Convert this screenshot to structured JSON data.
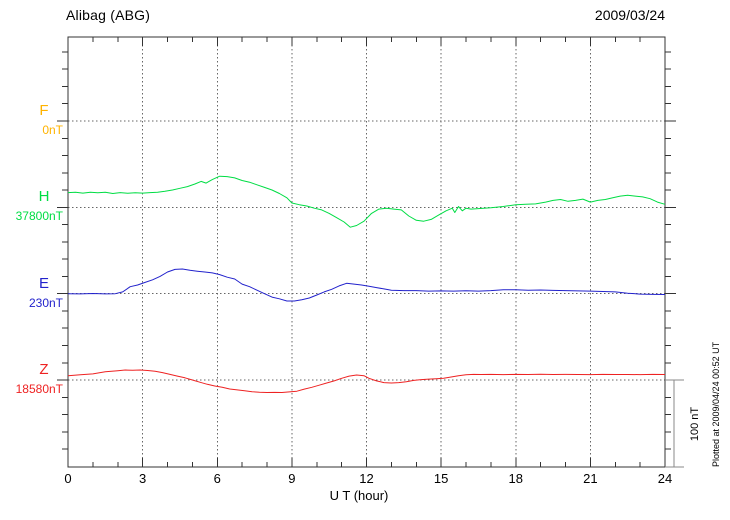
{
  "header": {
    "title": "Alibag (ABG)",
    "date": "2009/03/24"
  },
  "xaxis": {
    "label": "U T (hour)",
    "ticks": [
      "0",
      "3",
      "6",
      "9",
      "12",
      "15",
      "18",
      "21",
      "24"
    ],
    "min": 0,
    "max": 24
  },
  "scale_bar": {
    "label": "100 nT",
    "nT": 100
  },
  "footnote": "Plotted at 2009/04/24 00:52 UT",
  "colors": {
    "F": "#FFB300",
    "H": "#00DD44",
    "E": "#2222CC",
    "Z": "#EE2222",
    "grid": "#666666",
    "axis": "#333333",
    "scalebar": "#888888"
  },
  "traces": [
    {
      "label": "F",
      "baseline_label": "0nT",
      "color": "#FFB300"
    },
    {
      "label": "H",
      "baseline_label": "37800nT",
      "color": "#00DD44"
    },
    {
      "label": "E",
      "baseline_label": "230nT",
      "color": "#2222CC"
    },
    {
      "label": "Z",
      "baseline_label": "18580nT",
      "color": "#EE2222"
    }
  ],
  "chart_data": {
    "type": "line",
    "title": "Alibag (ABG) magnetogram 2009/03/24",
    "xlabel": "U T (hour)",
    "x_range": [
      0,
      24
    ],
    "grid": "dotted at 3-hour intervals and at each component baseline",
    "legend_position": "left margin (component letters with baseline values)",
    "scale_bar_nT": 100,
    "series": [
      {
        "name": "F",
        "baseline_nT": 0,
        "color": "#FFB300",
        "points": []
      },
      {
        "name": "H",
        "baseline_nT": 37800,
        "color": "#00DD44",
        "points": [
          [
            0,
            17
          ],
          [
            0.3,
            17.5
          ],
          [
            0.6,
            16.5
          ],
          [
            0.9,
            17.5
          ],
          [
            1.2,
            16.8
          ],
          [
            1.5,
            17.5
          ],
          [
            1.8,
            16
          ],
          [
            2.1,
            17
          ],
          [
            2.4,
            16.2
          ],
          [
            2.7,
            16.8
          ],
          [
            3.0,
            16.5
          ],
          [
            3.3,
            17
          ],
          [
            3.6,
            17.5
          ],
          [
            3.9,
            18.5
          ],
          [
            4.2,
            20
          ],
          [
            4.5,
            22
          ],
          [
            4.8,
            24
          ],
          [
            5.1,
            27
          ],
          [
            5.35,
            30
          ],
          [
            5.55,
            28
          ],
          [
            5.8,
            32
          ],
          [
            6.1,
            36
          ],
          [
            6.4,
            35.5
          ],
          [
            6.7,
            34
          ],
          [
            7.0,
            31
          ],
          [
            7.3,
            29
          ],
          [
            7.6,
            26
          ],
          [
            7.9,
            23
          ],
          [
            8.2,
            20
          ],
          [
            8.5,
            16
          ],
          [
            8.8,
            11
          ],
          [
            9.0,
            5
          ],
          [
            9.3,
            3
          ],
          [
            9.6,
            1.5
          ],
          [
            9.9,
            -1
          ],
          [
            10.2,
            -3
          ],
          [
            10.5,
            -7
          ],
          [
            10.8,
            -12
          ],
          [
            11.1,
            -17
          ],
          [
            11.35,
            -23
          ],
          [
            11.6,
            -21
          ],
          [
            11.9,
            -16
          ],
          [
            12.2,
            -7
          ],
          [
            12.5,
            -2
          ],
          [
            12.8,
            -1
          ],
          [
            13.1,
            -2
          ],
          [
            13.4,
            -3
          ],
          [
            13.7,
            -10
          ],
          [
            14.0,
            -15
          ],
          [
            14.3,
            -16
          ],
          [
            14.6,
            -14
          ],
          [
            14.9,
            -9
          ],
          [
            15.2,
            -4
          ],
          [
            15.45,
            -1
          ],
          [
            15.55,
            -6
          ],
          [
            15.7,
            1
          ],
          [
            15.85,
            -4
          ],
          [
            16.0,
            -1
          ],
          [
            16.2,
            -2
          ],
          [
            16.5,
            -1.5
          ],
          [
            17.0,
            -0.5
          ],
          [
            17.5,
            1
          ],
          [
            18.0,
            3
          ],
          [
            18.4,
            3.5
          ],
          [
            18.8,
            4
          ],
          [
            19.2,
            6
          ],
          [
            19.5,
            8
          ],
          [
            19.8,
            9
          ],
          [
            20.1,
            7
          ],
          [
            20.4,
            8
          ],
          [
            20.7,
            9.5
          ],
          [
            21.0,
            6
          ],
          [
            21.3,
            8
          ],
          [
            21.6,
            9
          ],
          [
            21.9,
            11
          ],
          [
            22.2,
            13
          ],
          [
            22.5,
            14
          ],
          [
            22.8,
            13
          ],
          [
            23.1,
            12
          ],
          [
            23.4,
            10
          ],
          [
            23.7,
            6
          ],
          [
            24,
            3.5
          ]
        ]
      },
      {
        "name": "E",
        "baseline_nT": 230,
        "color": "#2222CC",
        "points": [
          [
            0,
            0
          ],
          [
            0.5,
            -0.3
          ],
          [
            1.0,
            0.2
          ],
          [
            1.5,
            -0.3
          ],
          [
            1.9,
            0
          ],
          [
            2.2,
            2
          ],
          [
            2.5,
            8
          ],
          [
            2.8,
            10
          ],
          [
            3.1,
            13
          ],
          [
            3.4,
            16
          ],
          [
            3.7,
            20
          ],
          [
            4.0,
            25
          ],
          [
            4.3,
            28
          ],
          [
            4.6,
            28.5
          ],
          [
            4.9,
            27
          ],
          [
            5.2,
            26
          ],
          [
            5.5,
            25
          ],
          [
            5.8,
            24
          ],
          [
            6.1,
            22
          ],
          [
            6.4,
            19
          ],
          [
            6.7,
            17
          ],
          [
            7.0,
            11
          ],
          [
            7.3,
            8
          ],
          [
            7.6,
            4
          ],
          [
            7.9,
            0
          ],
          [
            8.2,
            -4
          ],
          [
            8.5,
            -6
          ],
          [
            8.8,
            -8.5
          ],
          [
            9.1,
            -8.5
          ],
          [
            9.4,
            -7
          ],
          [
            9.7,
            -5
          ],
          [
            10.0,
            -1.5
          ],
          [
            10.3,
            2
          ],
          [
            10.6,
            5
          ],
          [
            10.9,
            9
          ],
          [
            11.2,
            12
          ],
          [
            11.5,
            11
          ],
          [
            11.8,
            10
          ],
          [
            12.1,
            8.5
          ],
          [
            12.4,
            7
          ],
          [
            12.7,
            5.5
          ],
          [
            13.0,
            4
          ],
          [
            13.5,
            3.5
          ],
          [
            14,
            3.5
          ],
          [
            14.5,
            3
          ],
          [
            15,
            3.2
          ],
          [
            15.5,
            3
          ],
          [
            16,
            3.3
          ],
          [
            16.5,
            3
          ],
          [
            17,
            3.5
          ],
          [
            17.5,
            4.5
          ],
          [
            18,
            4.5
          ],
          [
            18.5,
            4
          ],
          [
            19,
            4.2
          ],
          [
            19.5,
            3.8
          ],
          [
            20,
            3.5
          ],
          [
            20.5,
            3.2
          ],
          [
            21,
            3
          ],
          [
            21.5,
            2.5
          ],
          [
            22,
            2
          ],
          [
            22.5,
            0.5
          ],
          [
            23,
            -0.5
          ],
          [
            23.5,
            -0.8
          ],
          [
            24,
            -1
          ]
        ]
      },
      {
        "name": "Z",
        "baseline_nT": 18580,
        "color": "#EE2222",
        "points": [
          [
            0,
            5
          ],
          [
            0.5,
            6
          ],
          [
            1.0,
            7
          ],
          [
            1.5,
            9.5
          ],
          [
            2.0,
            10.7
          ],
          [
            2.3,
            11.5
          ],
          [
            2.6,
            11.2
          ],
          [
            2.9,
            11.6
          ],
          [
            3.2,
            11
          ],
          [
            3.5,
            10
          ],
          [
            3.8,
            8.5
          ],
          [
            4.1,
            6.5
          ],
          [
            4.4,
            4.5
          ],
          [
            4.7,
            2.5
          ],
          [
            5.0,
            0
          ],
          [
            5.3,
            -2.5
          ],
          [
            5.6,
            -5
          ],
          [
            5.9,
            -7
          ],
          [
            6.2,
            -8.5
          ],
          [
            6.5,
            -10.4
          ],
          [
            6.8,
            -11.5
          ],
          [
            7.1,
            -12.5
          ],
          [
            7.4,
            -13.5
          ],
          [
            7.7,
            -14.2
          ],
          [
            8.0,
            -14.5
          ],
          [
            8.3,
            -14.3
          ],
          [
            8.6,
            -14.5
          ],
          [
            8.9,
            -13.8
          ],
          [
            9.2,
            -13
          ],
          [
            9.5,
            -10.5
          ],
          [
            9.8,
            -8.5
          ],
          [
            10.1,
            -6
          ],
          [
            10.4,
            -3.5
          ],
          [
            10.7,
            -1
          ],
          [
            11.0,
            2
          ],
          [
            11.3,
            4.5
          ],
          [
            11.6,
            5.8
          ],
          [
            11.9,
            5
          ],
          [
            12.1,
            2
          ],
          [
            12.4,
            -1
          ],
          [
            12.7,
            -3
          ],
          [
            13.0,
            -3.5
          ],
          [
            13.3,
            -3
          ],
          [
            13.6,
            -2
          ],
          [
            13.9,
            -0.5
          ],
          [
            14.2,
            0.5
          ],
          [
            14.5,
            1
          ],
          [
            14.8,
            1.5
          ],
          [
            15.1,
            2
          ],
          [
            15.4,
            3.5
          ],
          [
            15.7,
            5
          ],
          [
            16.0,
            6
          ],
          [
            16.3,
            6.5
          ],
          [
            16.6,
            6.3
          ],
          [
            17,
            6.5
          ],
          [
            17.5,
            6.2
          ],
          [
            18,
            6.5
          ],
          [
            18.5,
            6.4
          ],
          [
            19,
            6.6
          ],
          [
            19.5,
            6.3
          ],
          [
            20,
            6.5
          ],
          [
            20.5,
            6.4
          ],
          [
            21,
            6.2
          ],
          [
            21.5,
            6.5
          ],
          [
            22,
            6.3
          ],
          [
            22.5,
            6.4
          ],
          [
            23,
            6.2
          ],
          [
            23.5,
            6.5
          ],
          [
            24,
            6.3
          ]
        ]
      }
    ]
  }
}
